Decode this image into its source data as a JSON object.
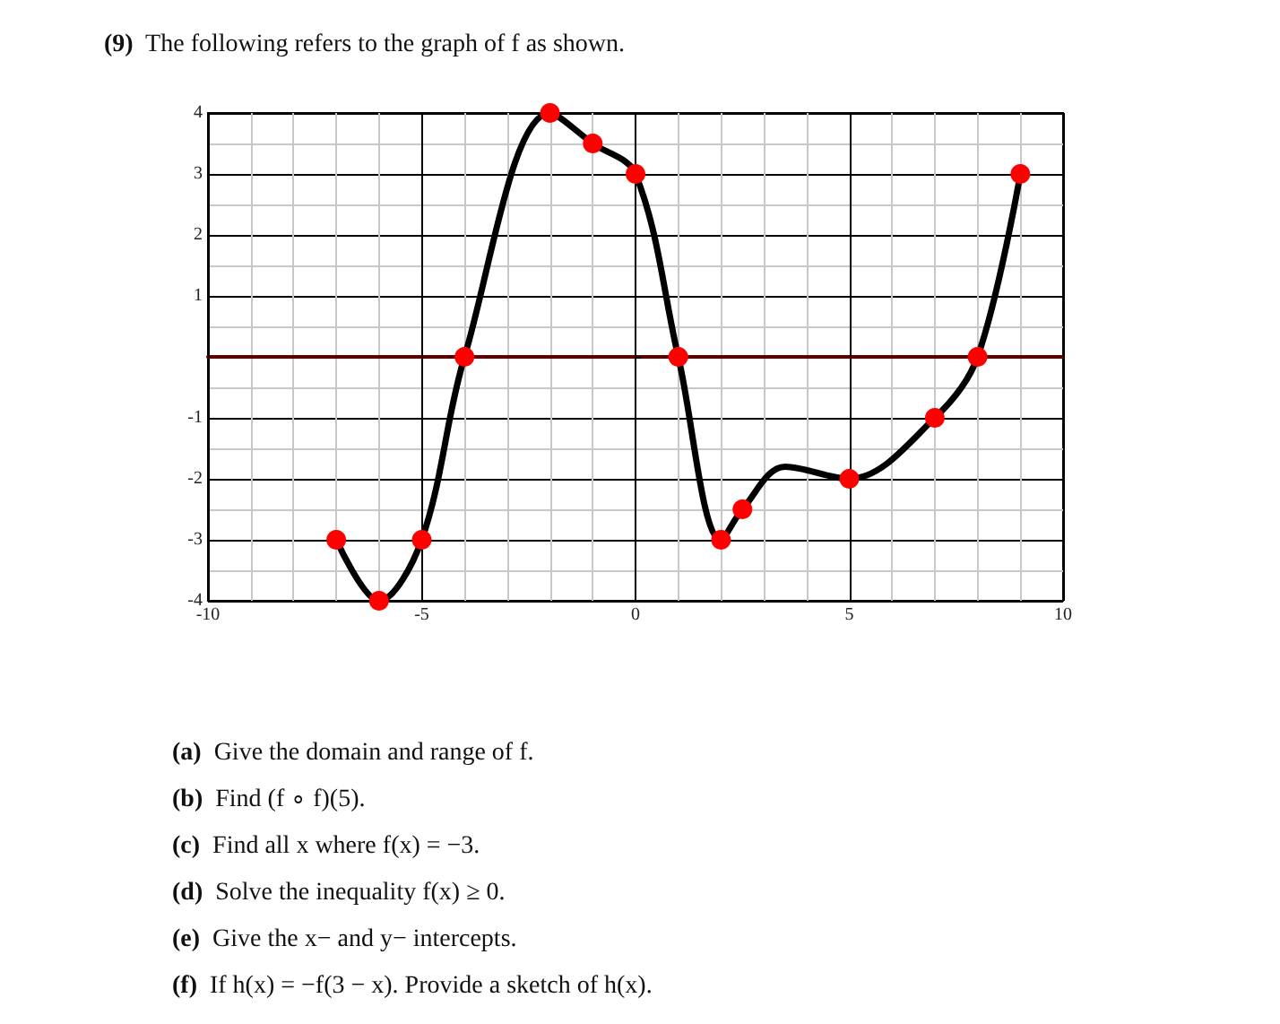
{
  "chart_data": {
    "type": "line",
    "title": "(9) The following refers to the graph of f as shown.",
    "annotations": [
      "(a) Give the domain and range of f.",
      "(b) Find (f ∘ f)(5).",
      "(c) Find all x where f(x) = −3.",
      "(d) Solve the inequality f(x) ≥ 0.",
      "(e) Give the x− and y− intercepts.",
      "(f) If h(x) = −f(3 − x). Provide a sketch of h(x)."
    ],
    "xlim": [
      -10,
      10
    ],
    "xticks": [
      -10,
      -5,
      0,
      5,
      10
    ],
    "ylim": [
      -4,
      4
    ],
    "yticks": [
      -4,
      -3,
      -2,
      -1,
      1,
      2,
      3,
      4
    ],
    "grid": true,
    "series": [
      {
        "color": "#000000",
        "marker": "none",
        "x": [
          -7,
          -6,
          -5,
          -4,
          -2,
          -1,
          0,
          1,
          2,
          2.5,
          3.5,
          5,
          7,
          8,
          9
        ],
        "values": [
          -3,
          -4,
          -3,
          0,
          4,
          3.5,
          3,
          0,
          -3,
          -2.5,
          -1.8,
          -2,
          -1,
          0,
          3
        ]
      },
      {
        "type": "scatter",
        "color": "#ff0000",
        "marker": "circle",
        "x": [
          -7,
          -6,
          -5,
          -4,
          -2,
          -1,
          0,
          1,
          2,
          2.5,
          5,
          7,
          8,
          9
        ],
        "values": [
          -3,
          -4,
          -3,
          0,
          4,
          3.5,
          3,
          0,
          -3,
          -2.5,
          -2,
          -1,
          0,
          3
        ]
      }
    ]
  }
}
